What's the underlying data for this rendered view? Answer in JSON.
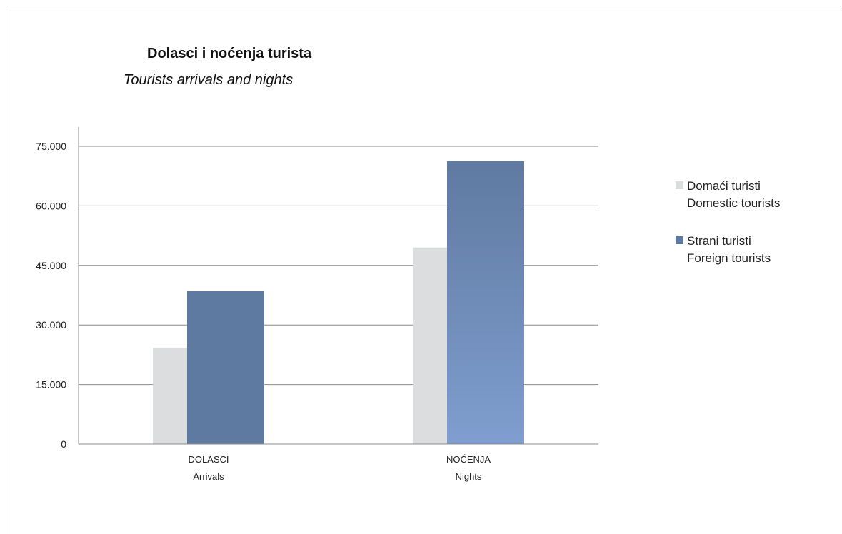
{
  "chart_data": {
    "type": "bar",
    "title": "Dolasci i noćenja turista",
    "subtitle": "Tourists arrivals and nights",
    "categories": [
      {
        "line1": "DOLASCI",
        "line2": "Arrivals"
      },
      {
        "line1": "NOĆENJA",
        "line2": "Nights"
      }
    ],
    "series": [
      {
        "name_line1": "Domaći turisti",
        "name_line2": "Domestic tourists",
        "color": "#dcdddf",
        "values": [
          24300,
          49500
        ]
      },
      {
        "name_line1": "Strani turisti",
        "name_line2": "Foreign tourists",
        "color": "#5f7aa1",
        "values": [
          38500,
          71300
        ]
      }
    ],
    "ylim": [
      0,
      75000
    ],
    "yticks": [
      0,
      15000,
      30000,
      45000,
      60000,
      75000
    ],
    "ytick_labels": [
      "0",
      "15.000",
      "30.000",
      "45.000",
      "60.000",
      "75.000"
    ],
    "grid": true,
    "legend_position": "right"
  }
}
